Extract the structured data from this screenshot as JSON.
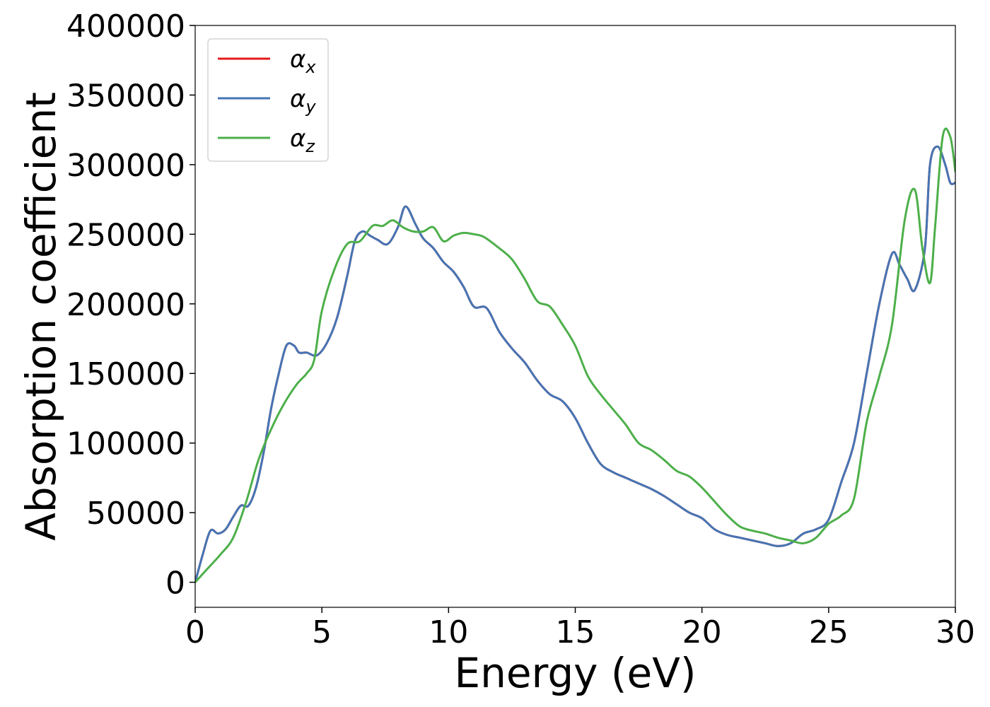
{
  "chart_data": {
    "type": "line",
    "xlabel": "Energy (eV)",
    "ylabel": "Absorption coefficient",
    "xlim": [
      0,
      30
    ],
    "ylim": [
      -18000,
      400000
    ],
    "xticks": [
      0,
      5,
      10,
      15,
      20,
      25,
      30
    ],
    "yticks": [
      0,
      50000,
      100000,
      150000,
      200000,
      250000,
      300000,
      350000,
      400000
    ],
    "xtick_labels": [
      "0",
      "5",
      "10",
      "15",
      "20",
      "25",
      "30"
    ],
    "ytick_labels": [
      "0",
      "50000",
      "100000",
      "150000",
      "200000",
      "250000",
      "300000",
      "350000",
      "400000"
    ],
    "grid": false,
    "legend_position": "top-left",
    "series": [
      {
        "name": "α_x",
        "symbol": "α",
        "subscript": "x",
        "color": "#e41a1c",
        "x": [
          0,
          0.3,
          0.6,
          0.9,
          1.2,
          1.5,
          1.8,
          2.1,
          2.4,
          2.7,
          3.0,
          3.3,
          3.6,
          3.9,
          4.1,
          4.4,
          4.8,
          5.2,
          5.6,
          6.0,
          6.3,
          6.6,
          6.9,
          7.2,
          7.6,
          8.0,
          8.3,
          8.7,
          9.0,
          9.4,
          9.8,
          10.2,
          10.6,
          11.0,
          11.5,
          12.0,
          12.5,
          13.0,
          13.5,
          14.0,
          14.5,
          15.0,
          15.5,
          16.0,
          16.5,
          17.0,
          17.5,
          18.0,
          18.5,
          19.0,
          19.5,
          20.0,
          20.5,
          21.0,
          21.5,
          22.0,
          22.5,
          23.0,
          23.5,
          24.0,
          24.5,
          25.0,
          25.5,
          26.0,
          26.5,
          27.0,
          27.5,
          27.8,
          28.1,
          28.4,
          28.8,
          29.0,
          29.3,
          29.6,
          29.8,
          30.0
        ],
        "y": [
          0,
          20000,
          37000,
          35000,
          38000,
          47000,
          55000,
          55000,
          68000,
          93000,
          125000,
          150000,
          170000,
          170000,
          165000,
          165000,
          163000,
          172000,
          190000,
          220000,
          245000,
          252000,
          249000,
          246000,
          243000,
          255000,
          270000,
          257000,
          247000,
          240000,
          230000,
          223000,
          212000,
          198000,
          197000,
          180000,
          168000,
          158000,
          145000,
          135000,
          130000,
          118000,
          100000,
          85000,
          79000,
          75000,
          71000,
          67000,
          62000,
          56000,
          50000,
          46000,
          38000,
          34000,
          32000,
          30000,
          28000,
          26000,
          28000,
          35000,
          38000,
          45000,
          72000,
          100000,
          150000,
          200000,
          236000,
          228000,
          218000,
          210000,
          240000,
          300000,
          313000,
          300000,
          287000,
          287000
        ]
      },
      {
        "name": "α_y",
        "symbol": "α",
        "subscript": "y",
        "color": "#4575b4",
        "x": [
          0,
          0.3,
          0.6,
          0.9,
          1.2,
          1.5,
          1.8,
          2.1,
          2.4,
          2.7,
          3.0,
          3.3,
          3.6,
          3.9,
          4.1,
          4.4,
          4.8,
          5.2,
          5.6,
          6.0,
          6.3,
          6.6,
          6.9,
          7.2,
          7.6,
          8.0,
          8.3,
          8.7,
          9.0,
          9.4,
          9.8,
          10.2,
          10.6,
          11.0,
          11.5,
          12.0,
          12.5,
          13.0,
          13.5,
          14.0,
          14.5,
          15.0,
          15.5,
          16.0,
          16.5,
          17.0,
          17.5,
          18.0,
          18.5,
          19.0,
          19.5,
          20.0,
          20.5,
          21.0,
          21.5,
          22.0,
          22.5,
          23.0,
          23.5,
          24.0,
          24.5,
          25.0,
          25.5,
          26.0,
          26.5,
          27.0,
          27.5,
          27.8,
          28.1,
          28.4,
          28.8,
          29.0,
          29.3,
          29.6,
          29.8,
          30.0
        ],
        "y": [
          0,
          20000,
          37000,
          35000,
          38000,
          47000,
          55000,
          55000,
          68000,
          93000,
          125000,
          150000,
          170000,
          170000,
          165000,
          165000,
          163000,
          172000,
          190000,
          220000,
          245000,
          252000,
          249000,
          246000,
          243000,
          255000,
          270000,
          257000,
          247000,
          240000,
          230000,
          223000,
          212000,
          198000,
          197000,
          180000,
          168000,
          158000,
          145000,
          135000,
          130000,
          118000,
          100000,
          85000,
          79000,
          75000,
          71000,
          67000,
          62000,
          56000,
          50000,
          46000,
          38000,
          34000,
          32000,
          30000,
          28000,
          26000,
          28000,
          35000,
          38000,
          45000,
          72000,
          100000,
          150000,
          200000,
          236000,
          228000,
          218000,
          210000,
          240000,
          300000,
          313000,
          300000,
          287000,
          287000
        ]
      },
      {
        "name": "α_z",
        "symbol": "α",
        "subscript": "z",
        "color": "#4daf4a",
        "x": [
          0,
          0.5,
          1.0,
          1.5,
          2.0,
          2.5,
          3.0,
          3.5,
          4.0,
          4.4,
          4.7,
          5.0,
          5.5,
          6.0,
          6.5,
          7.0,
          7.4,
          7.8,
          8.2,
          8.6,
          9.0,
          9.4,
          9.8,
          10.2,
          10.6,
          11.0,
          11.4,
          12.0,
          12.5,
          13.0,
          13.5,
          14.0,
          14.5,
          15.0,
          15.5,
          16.0,
          16.5,
          17.0,
          17.5,
          18.0,
          18.5,
          19.0,
          19.5,
          20.0,
          20.5,
          21.0,
          21.5,
          22.0,
          22.5,
          23.0,
          23.5,
          24.0,
          24.5,
          25.0,
          25.5,
          26.0,
          26.5,
          27.0,
          27.5,
          28.0,
          28.4,
          28.7,
          29.0,
          29.2,
          29.5,
          29.8,
          30.0
        ],
        "y": [
          0,
          10000,
          20000,
          32000,
          57000,
          88000,
          110000,
          128000,
          142000,
          150000,
          160000,
          195000,
          225000,
          243000,
          245000,
          256000,
          256000,
          260000,
          255000,
          252000,
          252000,
          255000,
          245000,
          249000,
          251000,
          250000,
          248000,
          240000,
          232000,
          218000,
          202000,
          198000,
          185000,
          170000,
          148000,
          135000,
          124000,
          113000,
          100000,
          95000,
          88000,
          80000,
          76000,
          68000,
          58000,
          48000,
          40000,
          37000,
          35000,
          32000,
          30000,
          28000,
          32000,
          42000,
          48000,
          60000,
          115000,
          148000,
          185000,
          260000,
          282000,
          240000,
          215000,
          255000,
          320000,
          320000,
          295000
        ]
      }
    ]
  }
}
